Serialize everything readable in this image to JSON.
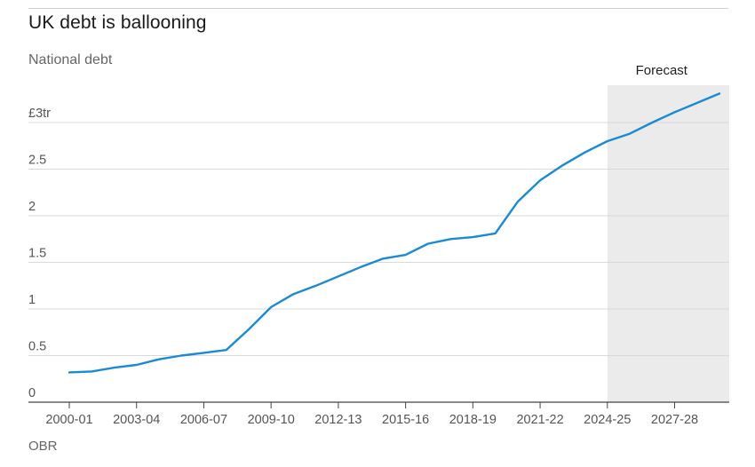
{
  "chart_data": {
    "type": "line",
    "title": "UK debt is ballooning",
    "subtitle": "National debt",
    "source": "OBR",
    "ylabel": "",
    "xlabel": "",
    "ylim": [
      0,
      3.4
    ],
    "y_ticks": [
      0,
      0.5,
      1,
      1.5,
      2,
      2.5,
      3
    ],
    "y_tick_labels": [
      "0",
      "0.5",
      "1",
      "1.5",
      "2",
      "2.5",
      "£3tr"
    ],
    "x_tick_labels": [
      "2000-01",
      "2003-04",
      "2006-07",
      "2009-10",
      "2012-13",
      "2015-16",
      "2018-19",
      "2021-22",
      "2024-25",
      "2027-28"
    ],
    "x": [
      "2000-01",
      "2001-02",
      "2002-03",
      "2003-04",
      "2004-05",
      "2005-06",
      "2006-07",
      "2007-08",
      "2008-09",
      "2009-10",
      "2010-11",
      "2011-12",
      "2012-13",
      "2013-14",
      "2014-15",
      "2015-16",
      "2016-17",
      "2017-18",
      "2018-19",
      "2019-20",
      "2020-21",
      "2021-22",
      "2022-23",
      "2023-24",
      "2024-25",
      "2025-26",
      "2026-27",
      "2027-28",
      "2028-29",
      "2029-30"
    ],
    "series": [
      {
        "values": [
          0.32,
          0.33,
          0.37,
          0.4,
          0.46,
          0.5,
          0.53,
          0.56,
          0.78,
          1.02,
          1.16,
          1.25,
          1.35,
          1.45,
          1.54,
          1.58,
          1.7,
          1.75,
          1.77,
          1.81,
          2.15,
          2.38,
          2.54,
          2.68,
          2.8,
          2.88,
          3.0,
          3.11,
          3.21,
          3.31
        ],
        "color": "#1a8ad4"
      }
    ],
    "forecast": {
      "label": "Forecast",
      "start": "2024-25",
      "end": "2029-30",
      "color": "#ebebeb"
    },
    "grid": true,
    "legend": "none"
  }
}
